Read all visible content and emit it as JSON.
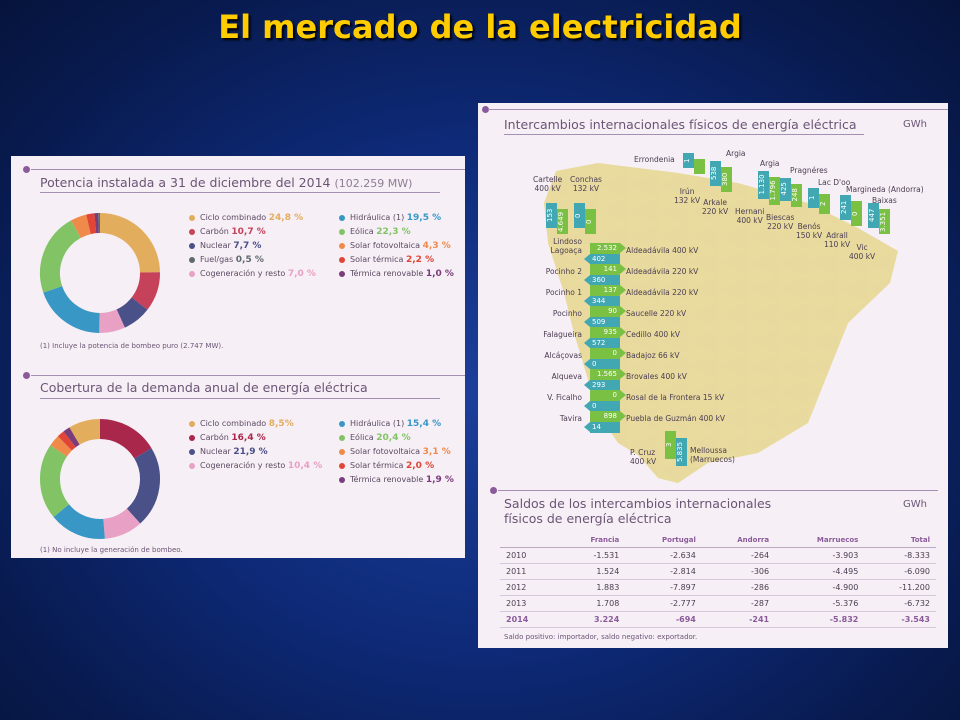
{
  "slide": {
    "title": "El mercado de la electricidad"
  },
  "potencia": {
    "title": "Potencia instalada a 31 de diciembre del 2014",
    "total": "(102.259 MW)",
    "legend_left": [
      {
        "label": "Ciclo combinado",
        "value": "24,8 %",
        "color": "#e3ad5e",
        "pct": 24.8
      },
      {
        "label": "Carbón",
        "value": "10,7 %",
        "color": "#c6415a",
        "pct": 10.7
      },
      {
        "label": "Nuclear",
        "value": "7,7 %",
        "color": "#4a5088",
        "pct": 7.7
      },
      {
        "label": "Fuel/gas",
        "value": "0,5 %",
        "color": "#5f6a70",
        "pct": 0.5
      },
      {
        "label": "Cogeneración y resto",
        "value": "7,0 %",
        "color": "#e8a0c4",
        "pct": 7.0
      }
    ],
    "legend_right": [
      {
        "label": "Hidráulica (1)",
        "value": "19,5 %",
        "color": "#3897c5",
        "pct": 19.5
      },
      {
        "label": "Eólica",
        "value": "22,3 %",
        "color": "#82c465",
        "pct": 22.3
      },
      {
        "label": "Solar fotovoltaica",
        "value": "4,3 %",
        "color": "#f08a4b",
        "pct": 4.3
      },
      {
        "label": "Solar térmica",
        "value": "2,2 %",
        "color": "#e04535",
        "pct": 2.2
      },
      {
        "label": "Térmica renovable",
        "value": "1,0 %",
        "color": "#7a3c7a",
        "pct": 1.0
      }
    ],
    "note": "(1) Incluye la potencia de bombeo puro (2.747 MW)."
  },
  "cobertura": {
    "title": "Cobertura de la demanda anual de energía eléctrica",
    "legend_left": [
      {
        "label": "Ciclo combinado",
        "value": "8,5%",
        "color": "#e3ad5e",
        "pct": 8.5
      },
      {
        "label": "Carbón",
        "value": "16,4 %",
        "color": "#a8274a",
        "pct": 16.4
      },
      {
        "label": "Nuclear",
        "value": "21,9 %",
        "color": "#4a5088",
        "pct": 21.9
      },
      {
        "label": "Cogeneración y resto",
        "value": "10,4 %",
        "color": "#e8a0c4",
        "pct": 10.4
      }
    ],
    "legend_right": [
      {
        "label": "Hidráulica (1)",
        "value": "15,4 %",
        "color": "#3897c5",
        "pct": 15.4
      },
      {
        "label": "Eólica",
        "value": "20,4 %",
        "color": "#82c465",
        "pct": 20.4
      },
      {
        "label": "Solar fotovoltaica",
        "value": "3,1 %",
        "color": "#f08a4b",
        "pct": 3.1
      },
      {
        "label": "Solar térmica",
        "value": "2,0 %",
        "color": "#e04535",
        "pct": 2.0
      },
      {
        "label": "Térmica renovable",
        "value": "1,9 %",
        "color": "#7a3c7a",
        "pct": 1.9
      }
    ],
    "note": "(1) No incluye la generación de bombeo."
  },
  "intercambios": {
    "title": "Intercambios internacionales físicos de energía eléctrica",
    "unit": "GWh",
    "north": [
      {
        "label": "Cartelle\n400 kV",
        "out": "153",
        "in": "4.649"
      },
      {
        "label": "Conchas\n132 kV",
        "out": "0",
        "in": "0"
      },
      {
        "label": "Errondenia",
        "out": "1",
        "in": ""
      },
      {
        "label": "Irún\n132 kV",
        "out": "0",
        "in": ""
      },
      {
        "label": "Argia",
        "out": "538",
        "in": "380"
      },
      {
        "label": "Arkale\n220 kV",
        "out": "",
        "in": ""
      },
      {
        "label": "Argia",
        "out": "1.130",
        "in": "1.796"
      },
      {
        "label": "Hernani\n400 kV",
        "out": "",
        "in": ""
      },
      {
        "label": "Pragnéres",
        "out": "425",
        "in": "248"
      },
      {
        "label": "Biescas\n220 kV",
        "out": "",
        "in": ""
      },
      {
        "label": "Lac D'oo",
        "out": "1",
        "in": "2"
      },
      {
        "label": "Benós\n150 kV",
        "out": "",
        "in": ""
      },
      {
        "label": "Margineda (Andorra)",
        "out": "241",
        "in": "0"
      },
      {
        "label": "Adrall\n110 kV",
        "out": "",
        "in": ""
      },
      {
        "label": "Baixas",
        "out": "447",
        "in": "3.351"
      },
      {
        "label": "Vic\n400 kV",
        "out": "",
        "in": ""
      }
    ],
    "portugal": [
      {
        "left": "Lindoso\nLagoaça",
        "right": "Aldeadávila 400 kV",
        "out": "2.532",
        "in": "402"
      },
      {
        "left": "Pocinho 2",
        "right": "Aldeadávila 220 kV",
        "out": "141",
        "in": "360"
      },
      {
        "left": "Pocinho 1",
        "right": "Aldeadávila 220 kV",
        "out": "137",
        "in": "344"
      },
      {
        "left": "Pocinho",
        "right": "Saucelle 220 kV",
        "out": "90",
        "in": "509"
      },
      {
        "left": "Falagueira",
        "right": "Cedillo 400 kV",
        "out": "935",
        "in": "572"
      },
      {
        "left": "Alcáçovas",
        "right": "Badajoz 66 kV",
        "out": "0",
        "in": "0"
      },
      {
        "left": "Alqueva",
        "right": "Brovales 400 kV",
        "out": "1.565",
        "in": "293"
      },
      {
        "left": "V. Ficalho",
        "right": "Rosal de la Frontera 15 kV",
        "out": "0",
        "in": "0"
      },
      {
        "left": "Tavira",
        "right": "Puebla de Guzmán 400 kV",
        "out": "898",
        "in": "14"
      }
    ],
    "south": {
      "left": "P. Cruz\n400 kV",
      "right": "Melloussa\n(Marruecos)",
      "out": "3",
      "in": "5.835"
    }
  },
  "saldos": {
    "title_line1": "Saldos de los intercambios internacionales",
    "title_line2": "físicos de energía eléctrica",
    "unit": "GWh",
    "headers": [
      "",
      "Francia",
      "Portugal",
      "Andorra",
      "Marruecos",
      "Total"
    ],
    "rows": [
      [
        "2010",
        "-1.531",
        "-2.634",
        "-264",
        "-3.903",
        "-8.333"
      ],
      [
        "2011",
        "1.524",
        "-2.814",
        "-306",
        "-4.495",
        "-6.090"
      ],
      [
        "2012",
        "1.883",
        "-7.897",
        "-286",
        "-4.900",
        "-11.200"
      ],
      [
        "2013",
        "1.708",
        "-2.777",
        "-287",
        "-5.376",
        "-6.732"
      ],
      [
        "2014",
        "3.224",
        "-694",
        "-241",
        "-5.832",
        "-3.543"
      ]
    ],
    "note": "Saldo positivo: importador, saldo negativo: exportador."
  }
}
